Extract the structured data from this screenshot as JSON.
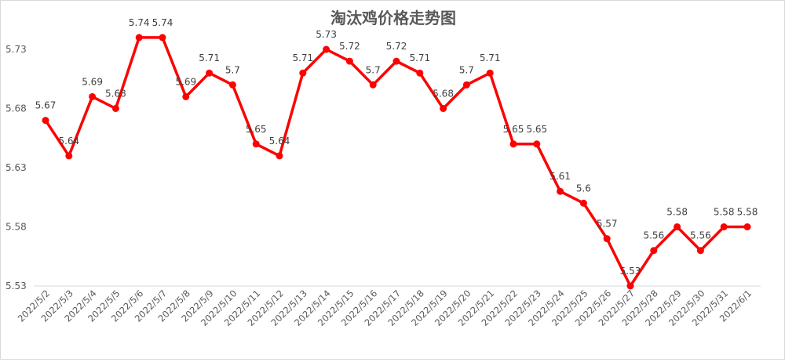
{
  "chart_data": {
    "type": "line",
    "title": "淘汰鸡价格走势图",
    "xlabel": "",
    "ylabel": "",
    "categories": [
      "2022/5/2",
      "2022/5/3",
      "2022/5/4",
      "2022/5/5",
      "2022/5/6",
      "2022/5/7",
      "2022/5/8",
      "2022/5/9",
      "2022/5/10",
      "2022/5/11",
      "2022/5/12",
      "2022/5/13",
      "2022/5/14",
      "2022/5/15",
      "2022/5/16",
      "2022/5/17",
      "2022/5/18",
      "2022/5/19",
      "2022/5/20",
      "2022/5/21",
      "2022/5/22",
      "2022/5/23",
      "2022/5/24",
      "2022/5/25",
      "2022/5/26",
      "2022/5/27",
      "2022/5/28",
      "2022/5/29",
      "2022/5/30",
      "2022/5/31",
      "2022/6/1"
    ],
    "values": [
      5.67,
      5.64,
      5.69,
      5.68,
      5.74,
      5.74,
      5.69,
      5.71,
      5.7,
      5.65,
      5.64,
      5.71,
      5.73,
      5.72,
      5.7,
      5.72,
      5.71,
      5.68,
      5.7,
      5.71,
      5.65,
      5.65,
      5.61,
      5.6,
      5.57,
      5.53,
      5.56,
      5.58,
      5.56,
      5.58,
      5.58
    ],
    "ylim": [
      5.53,
      5.73
    ],
    "yticks": [
      "5.73",
      "5.68",
      "5.63",
      "5.58",
      "5.53"
    ],
    "grid": false,
    "legend": "none",
    "color": "#ff0000"
  }
}
